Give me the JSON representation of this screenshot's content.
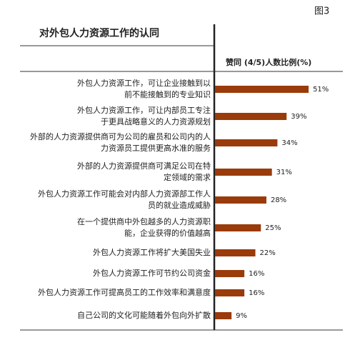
{
  "chart_data": {
    "type": "bar",
    "orientation": "horizontal",
    "figure_label": "图3",
    "title": "对外包人力资源工作的认同",
    "value_header": "赞同 (4/5)人数比例(%)",
    "color": "#9a3b0b",
    "categories": [
      [
        "外包人力资源工作，可让企业接触到以",
        "前不能接触到的专业知识"
      ],
      [
        "外包人力资源工作，可让内部员工专注",
        "于更具战略意义的人力资源规划"
      ],
      [
        "外部的人力资源提供商可为公司的雇员和公司内的人",
        "力资源员工提供更高水准的服务"
      ],
      [
        "外部的人力资源提供商可满足公司在特",
        "定领域的需求"
      ],
      [
        "外包人力资源工作可能会对内部人力资源部工作人",
        "员的就业造成威胁"
      ],
      [
        "在一个提供商中外包越多的人力资源职",
        "能，企业获得的价值越高"
      ],
      [
        "外包人力资源工作将扩大美国失业"
      ],
      [
        "外包人力资源工作可节约公司资金"
      ],
      [
        "外包人力资源工作可提高员工的工作效率和满意度"
      ],
      [
        "自己公司的文化可能随着外包向外扩散"
      ]
    ],
    "values": [
      51,
      39,
      34,
      31,
      28,
      25,
      22,
      16,
      16,
      9
    ],
    "value_labels": [
      "51%",
      "39%",
      "34%",
      "31%",
      "28%",
      "25%",
      "22%",
      "16%",
      "16%",
      "9%"
    ]
  }
}
